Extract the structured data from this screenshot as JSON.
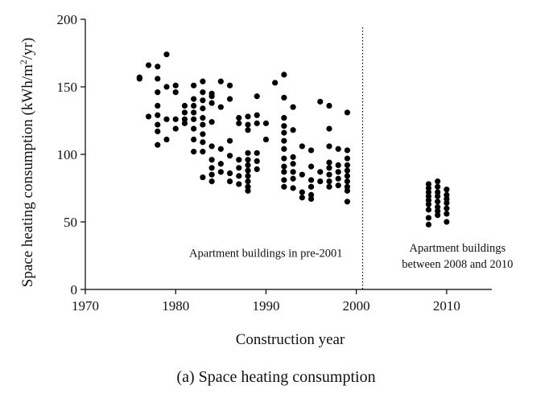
{
  "chart_data": {
    "type": "scatter",
    "title": "",
    "caption": "(a) Space heating consumption",
    "xlabel": "Construction year",
    "ylabel": "Space heating consumption (kWh/m²/yr)",
    "ylabel_parts": {
      "main": "Space heating consumption (kWh/m",
      "sup": "2",
      "tail": "/yr)"
    },
    "xlim": [
      1970,
      2015
    ],
    "ylim": [
      0,
      200
    ],
    "x_ticks": [
      1970,
      1980,
      1990,
      2000,
      2010
    ],
    "y_ticks": [
      0,
      50,
      100,
      150,
      200
    ],
    "x_tick_labels": [
      "1970",
      "1980",
      "1990",
      "2000",
      "2010"
    ],
    "y_tick_labels": [
      "0",
      "50",
      "100",
      "150",
      "200"
    ],
    "grid": false,
    "divider_x": 2000.7,
    "annotations": [
      {
        "id": "pre2001",
        "lines": [
          "Apartment buildings in pre-2001"
        ],
        "x": 1981.5,
        "y": 24
      },
      {
        "id": "post2008",
        "lines": [
          "Apartment buildings",
          "between 2008 and 2010"
        ],
        "x": 2011.2,
        "y": 28
      }
    ],
    "series": [
      {
        "name": "Apartment buildings in pre-2001",
        "color": "#000000",
        "points": [
          [
            1976,
            157
          ],
          [
            1976,
            156
          ],
          [
            1977,
            166
          ],
          [
            1977,
            128
          ],
          [
            1978,
            165
          ],
          [
            1978,
            156
          ],
          [
            1978,
            146
          ],
          [
            1978,
            136
          ],
          [
            1978,
            129
          ],
          [
            1978,
            122
          ],
          [
            1978,
            117
          ],
          [
            1978,
            107
          ],
          [
            1979,
            174
          ],
          [
            1979,
            150
          ],
          [
            1979,
            126
          ],
          [
            1979,
            111
          ],
          [
            1980,
            151
          ],
          [
            1980,
            146
          ],
          [
            1980,
            126
          ],
          [
            1980,
            119
          ],
          [
            1981,
            136
          ],
          [
            1981,
            131
          ],
          [
            1981,
            126
          ],
          [
            1981,
            123
          ],
          [
            1982,
            151
          ],
          [
            1982,
            141
          ],
          [
            1982,
            136
          ],
          [
            1982,
            131
          ],
          [
            1982,
            126
          ],
          [
            1982,
            119
          ],
          [
            1982,
            111
          ],
          [
            1982,
            102
          ],
          [
            1983,
            154
          ],
          [
            1983,
            146
          ],
          [
            1983,
            140
          ],
          [
            1983,
            134
          ],
          [
            1983,
            127
          ],
          [
            1983,
            122
          ],
          [
            1983,
            115
          ],
          [
            1983,
            109
          ],
          [
            1983,
            102
          ],
          [
            1983,
            83
          ],
          [
            1984,
            145
          ],
          [
            1984,
            143
          ],
          [
            1984,
            138
          ],
          [
            1984,
            124
          ],
          [
            1984,
            106
          ],
          [
            1984,
            96
          ],
          [
            1984,
            90
          ],
          [
            1984,
            85
          ],
          [
            1984,
            80
          ],
          [
            1985,
            154
          ],
          [
            1985,
            135
          ],
          [
            1985,
            104
          ],
          [
            1985,
            93
          ],
          [
            1985,
            87
          ],
          [
            1986,
            151
          ],
          [
            1986,
            141
          ],
          [
            1986,
            110
          ],
          [
            1986,
            99
          ],
          [
            1986,
            86
          ],
          [
            1986,
            80
          ],
          [
            1987,
            127
          ],
          [
            1987,
            123
          ],
          [
            1987,
            96
          ],
          [
            1987,
            90
          ],
          [
            1987,
            84
          ],
          [
            1987,
            78
          ],
          [
            1988,
            128
          ],
          [
            1988,
            122
          ],
          [
            1988,
            118
          ],
          [
            1988,
            101
          ],
          [
            1988,
            96
          ],
          [
            1988,
            92
          ],
          [
            1988,
            88
          ],
          [
            1988,
            84
          ],
          [
            1988,
            80
          ],
          [
            1988,
            76
          ],
          [
            1988,
            73
          ],
          [
            1989,
            143
          ],
          [
            1989,
            129
          ],
          [
            1989,
            123
          ],
          [
            1989,
            101
          ],
          [
            1989,
            95
          ],
          [
            1989,
            89
          ],
          [
            1990,
            123
          ],
          [
            1990,
            111
          ],
          [
            1991,
            153
          ],
          [
            1992,
            159
          ],
          [
            1992,
            142
          ],
          [
            1992,
            127
          ],
          [
            1992,
            121
          ],
          [
            1992,
            116
          ],
          [
            1992,
            110
          ],
          [
            1992,
            104
          ],
          [
            1992,
            97
          ],
          [
            1992,
            91
          ],
          [
            1992,
            87
          ],
          [
            1992,
            81
          ],
          [
            1992,
            76
          ],
          [
            1993,
            135
          ],
          [
            1993,
            118
          ],
          [
            1993,
            98
          ],
          [
            1993,
            93
          ],
          [
            1993,
            87
          ],
          [
            1993,
            82
          ],
          [
            1993,
            75
          ],
          [
            1994,
            106
          ],
          [
            1994,
            85
          ],
          [
            1994,
            72
          ],
          [
            1994,
            68
          ],
          [
            1995,
            103
          ],
          [
            1995,
            91
          ],
          [
            1995,
            81
          ],
          [
            1995,
            76
          ],
          [
            1995,
            70
          ],
          [
            1995,
            67
          ],
          [
            1996,
            139
          ],
          [
            1996,
            87
          ],
          [
            1996,
            80
          ],
          [
            1997,
            136
          ],
          [
            1997,
            119
          ],
          [
            1997,
            106
          ],
          [
            1997,
            94
          ],
          [
            1997,
            90
          ],
          [
            1997,
            85
          ],
          [
            1997,
            80
          ],
          [
            1997,
            76
          ],
          [
            1998,
            104
          ],
          [
            1998,
            92
          ],
          [
            1998,
            87
          ],
          [
            1998,
            82
          ],
          [
            1998,
            77
          ],
          [
            1999,
            131
          ],
          [
            1999,
            103
          ],
          [
            1999,
            97
          ],
          [
            1999,
            92
          ],
          [
            1999,
            88
          ],
          [
            1999,
            84
          ],
          [
            1999,
            80
          ],
          [
            1999,
            76
          ],
          [
            1999,
            73
          ],
          [
            1999,
            65
          ]
        ]
      },
      {
        "name": "Apartment buildings between 2008 and 2010",
        "color": "#000000",
        "points": [
          [
            2008,
            78
          ],
          [
            2008,
            75
          ],
          [
            2008,
            72
          ],
          [
            2008,
            69
          ],
          [
            2008,
            66
          ],
          [
            2008,
            63
          ],
          [
            2008,
            59
          ],
          [
            2008,
            53
          ],
          [
            2008,
            48
          ],
          [
            2009,
            80
          ],
          [
            2009,
            76
          ],
          [
            2009,
            72
          ],
          [
            2009,
            69
          ],
          [
            2009,
            65
          ],
          [
            2009,
            61
          ],
          [
            2009,
            58
          ],
          [
            2009,
            55
          ],
          [
            2010,
            74
          ],
          [
            2010,
            70
          ],
          [
            2010,
            67
          ],
          [
            2010,
            64
          ],
          [
            2010,
            60
          ],
          [
            2010,
            56
          ],
          [
            2010,
            50
          ]
        ]
      }
    ]
  }
}
